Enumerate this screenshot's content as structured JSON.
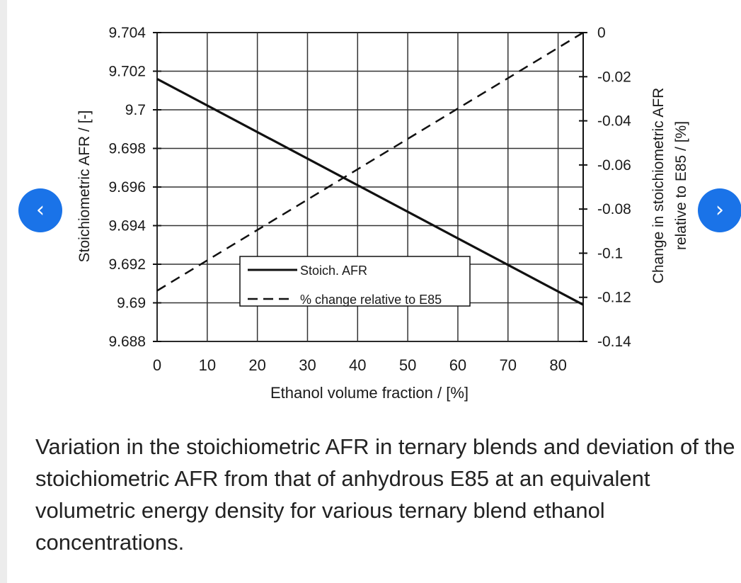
{
  "caption": "Variation in the stoichiometric AFR in ternary blends and deviation of the stoichiometric AFR from that of anhydrous E85 at an equivalent volumetric energy density for various ternary blend ethanol concentrations.",
  "nav": {
    "prev_icon": "‹",
    "next_icon": "›"
  },
  "colors": {
    "accent": "#1a73e8",
    "ink": "#111111",
    "grid": "#333333"
  },
  "chart_data": {
    "type": "line",
    "xlabel": "Ethanol volume fraction / [%]",
    "ylabel": "Stoichiometric AFR / [-]",
    "y2label_line1": "Change in stoichiometric AFR",
    "y2label_line2": "relative to E85 / [%]",
    "xlim": [
      0,
      85
    ],
    "ylim": [
      9.688,
      9.704
    ],
    "y2lim": [
      -0.14,
      0
    ],
    "xticks": [
      0,
      10,
      20,
      30,
      40,
      50,
      60,
      70,
      80
    ],
    "xtick_labels": [
      "0",
      "10",
      "20",
      "30",
      "40",
      "50",
      "60",
      "70",
      "80"
    ],
    "yticks": [
      9.704,
      9.702,
      9.7,
      9.698,
      9.696,
      9.694,
      9.692,
      9.69,
      9.688
    ],
    "ytick_labels": [
      "9.704",
      "9.702",
      "9.7",
      "9.698",
      "9.696",
      "9.694",
      "9.692",
      "9.69",
      "9.688"
    ],
    "y2ticks": [
      0,
      -0.02,
      -0.04,
      -0.06,
      -0.08,
      -0.1,
      -0.12,
      -0.14
    ],
    "y2tick_labels": [
      "0",
      "-0.02",
      "-0.04",
      "-0.06",
      "-0.08",
      "-0.1",
      "-0.12",
      "-0.14"
    ],
    "grid": true,
    "legend_position": "bottom-center",
    "series": [
      {
        "name": "Stoich. AFR",
        "axis": "left",
        "style": "solid",
        "x": [
          0,
          85
        ],
        "y": [
          9.7016,
          9.6899
        ]
      },
      {
        "name": "% change relative to E85",
        "axis": "right",
        "style": "dashed",
        "x": [
          0,
          85
        ],
        "y": [
          -0.117,
          0
        ]
      }
    ]
  }
}
